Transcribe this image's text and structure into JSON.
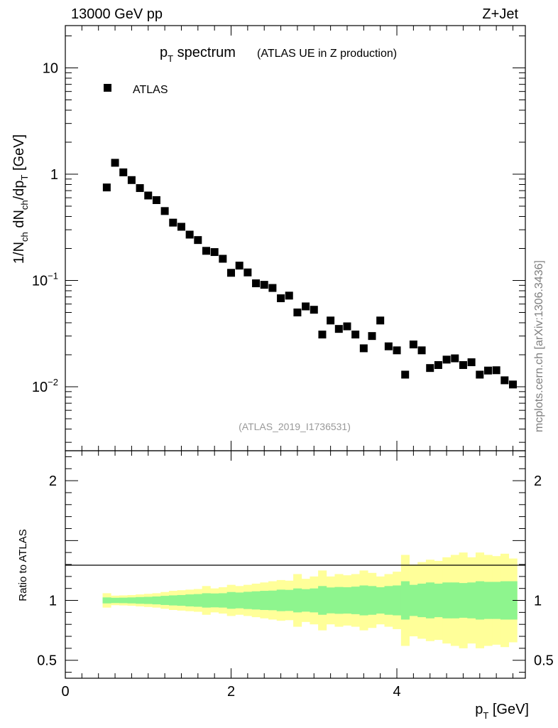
{
  "header": {
    "left": "13000 GeV pp",
    "right": "Z+Jet"
  },
  "side_label": "mcplots.cern.ch [arXiv:1306.3436]",
  "chart_data": {
    "type": "scatter",
    "title_main": "p",
    "title_main_sub": "T",
    "title_main_rest": " spectrum",
    "title_note": "(ATLAS UE in Z production)",
    "analysis_id": "(ATLAS_2019_I1736531)",
    "legend": [
      "ATLAS"
    ],
    "xlabel": "p",
    "xlabel_sub": "T",
    "xlabel_unit": " [GeV]",
    "ylabel": "1/N_ch dN_ch/dp_T [GeV]",
    "ratio_ylabel": "Ratio to ATLAS",
    "xlim": [
      0,
      5.55
    ],
    "ylim": [
      0.0025,
      25
    ],
    "ratio_ylim": [
      0.35,
      2.25
    ],
    "xticks": [
      0,
      2,
      4
    ],
    "xtick_labels": [
      "0",
      "2",
      "4"
    ],
    "yticks": [
      10,
      1,
      0.1,
      0.01
    ],
    "ytick_labels": [
      {
        "base": "10",
        "exp": ""
      },
      {
        "base": "1",
        "exp": ""
      },
      {
        "base": "10",
        "exp": "−1"
      },
      {
        "base": "10",
        "exp": "−2"
      }
    ],
    "ratio_yticks": [
      2,
      1,
      0.5
    ],
    "ratio_ytick_labels": [
      "2",
      "1",
      "0.5"
    ],
    "x": [
      0.5,
      0.6,
      0.7,
      0.8,
      0.9,
      1.0,
      1.1,
      1.2,
      1.3,
      1.4,
      1.5,
      1.6,
      1.7,
      1.8,
      1.9,
      2.0,
      2.1,
      2.2,
      2.3,
      2.4,
      2.5,
      2.6,
      2.7,
      2.8,
      2.9,
      3.0,
      3.1,
      3.2,
      3.3,
      3.4,
      3.5,
      3.6,
      3.7,
      3.8,
      3.9,
      4.0,
      4.1,
      4.2,
      4.3,
      4.4,
      4.5,
      4.6,
      4.7,
      4.8,
      4.9,
      5.0,
      5.1,
      5.2,
      5.3,
      5.4
    ],
    "series": [
      {
        "name": "ATLAS",
        "values": [
          0.75,
          1.28,
          1.04,
          0.88,
          0.74,
          0.63,
          0.57,
          0.45,
          0.35,
          0.32,
          0.27,
          0.24,
          0.19,
          0.185,
          0.16,
          0.118,
          0.138,
          0.119,
          0.094,
          0.091,
          0.085,
          0.068,
          0.072,
          0.05,
          0.057,
          0.053,
          0.031,
          0.042,
          0.035,
          0.037,
          0.031,
          0.023,
          0.03,
          0.042,
          0.024,
          0.022,
          0.013,
          0.025,
          0.022,
          0.015,
          0.016,
          0.018,
          0.0185,
          0.016,
          0.017,
          0.013,
          0.0142,
          0.0143,
          0.0115,
          0.0105
        ]
      }
    ],
    "ratio_band_inner_half": [
      0.025,
      0.022,
      0.023,
      0.025,
      0.028,
      0.03,
      0.033,
      0.038,
      0.042,
      0.045,
      0.05,
      0.053,
      0.06,
      0.058,
      0.06,
      0.07,
      0.066,
      0.072,
      0.076,
      0.08,
      0.082,
      0.09,
      0.088,
      0.1,
      0.094,
      0.1,
      0.12,
      0.108,
      0.112,
      0.11,
      0.115,
      0.125,
      0.12,
      0.11,
      0.12,
      0.125,
      0.16,
      0.13,
      0.14,
      0.15,
      0.14,
      0.15,
      0.15,
      0.145,
      0.15,
      0.16,
      0.155,
      0.155,
      0.16,
      0.16
    ],
    "ratio_band_outer_half": [
      0.06,
      0.04,
      0.042,
      0.045,
      0.05,
      0.055,
      0.06,
      0.07,
      0.08,
      0.085,
      0.09,
      0.095,
      0.12,
      0.1,
      0.11,
      0.13,
      0.12,
      0.13,
      0.14,
      0.15,
      0.16,
      0.17,
      0.165,
      0.22,
      0.18,
      0.2,
      0.25,
      0.2,
      0.22,
      0.21,
      0.22,
      0.25,
      0.23,
      0.2,
      0.22,
      0.24,
      0.38,
      0.3,
      0.32,
      0.34,
      0.33,
      0.36,
      0.38,
      0.4,
      0.36,
      0.4,
      0.38,
      0.37,
      0.39,
      0.35
    ]
  },
  "colors": {
    "marker": "#000000",
    "band_inner": "#8ef58e",
    "band_outer": "#ffff99",
    "side_label": "#7f7f7f",
    "analysis_id": "#999999"
  }
}
